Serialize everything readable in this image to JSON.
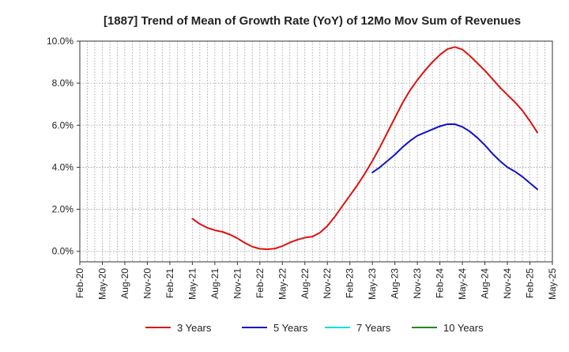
{
  "chart_data": {
    "type": "line",
    "title": "[1887]  Trend of Mean of Growth Rate (YoY) of 12Mo Mov Sum of Revenues",
    "xlabel": "",
    "ylabel": "",
    "ylim": [
      -0.5,
      10.0
    ],
    "y_ticks": [
      0.0,
      2.0,
      4.0,
      6.0,
      8.0,
      10.0
    ],
    "y_tick_labels": [
      "0.0%",
      "2.0%",
      "4.0%",
      "6.0%",
      "8.0%",
      "10.0%"
    ],
    "x_tick_labels": [
      "Feb-20",
      "May-20",
      "Aug-20",
      "Nov-20",
      "Feb-21",
      "May-21",
      "Aug-21",
      "Nov-21",
      "Feb-22",
      "May-22",
      "Aug-22",
      "Nov-22",
      "Feb-23",
      "May-23",
      "Aug-23",
      "Nov-23",
      "Feb-24",
      "May-24",
      "Aug-24",
      "Nov-24",
      "Feb-25",
      "May-25"
    ],
    "x_start": "Feb-20",
    "x_months": 63,
    "grid": true,
    "legend_position": "bottom",
    "series": [
      {
        "name": "3 Years",
        "color": "#dd1111",
        "start_index": 15,
        "values": [
          1.55,
          1.3,
          1.12,
          1.0,
          0.93,
          0.8,
          0.62,
          0.4,
          0.22,
          0.12,
          0.1,
          0.13,
          0.25,
          0.42,
          0.55,
          0.65,
          0.7,
          0.88,
          1.2,
          1.65,
          2.15,
          2.65,
          3.15,
          3.7,
          4.3,
          4.95,
          5.65,
          6.35,
          7.05,
          7.65,
          8.15,
          8.6,
          9.0,
          9.35,
          9.62,
          9.72,
          9.6,
          9.3,
          8.95,
          8.6,
          8.2,
          7.8,
          7.45,
          7.1,
          6.7,
          6.2,
          5.65
        ]
      },
      {
        "name": "5 Years",
        "color": "#1111cc",
        "start_index": 39,
        "values": [
          3.75,
          4.0,
          4.3,
          4.6,
          4.95,
          5.25,
          5.5,
          5.65,
          5.8,
          5.95,
          6.05,
          6.05,
          5.92,
          5.7,
          5.4,
          5.05,
          4.65,
          4.3,
          4.0,
          3.8,
          3.55,
          3.25,
          2.95
        ]
      },
      {
        "name": "7 Years",
        "color": "#11dddd",
        "start_index": 0,
        "values": []
      },
      {
        "name": "10 Years",
        "color": "#228822",
        "start_index": 0,
        "values": []
      }
    ]
  }
}
